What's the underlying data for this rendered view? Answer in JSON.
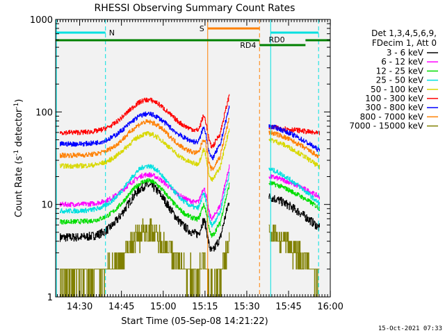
{
  "chart_data": {
    "type": "line",
    "title": "RHESSI Observing Summary Count Rates",
    "xlabel": "Start Time (05-Sep-08 14:21:22)",
    "ylabel_main": "Count Rate (s",
    "ylabel_sup1": "-1",
    "ylabel_mid": " detector",
    "ylabel_sup2": "-1",
    "ylabel_end": ")",
    "y_scale": "log",
    "ylim": [
      1,
      1000
    ],
    "x_ticks": [
      "14:30",
      "14:45",
      "15:00",
      "15:15",
      "15:30",
      "15:45",
      "16:00"
    ],
    "y_ticks": [
      "1",
      "10",
      "100",
      "1000"
    ],
    "timestamp": "15-Oct-2021 07:33",
    "legend_header": [
      "Det 1,3,4,5,6,9,",
      "FDecim 1, Att 0"
    ],
    "legend_position": "top-right",
    "series": [
      {
        "name": "3 - 6 keV",
        "color": "#000000",
        "base": 4.4,
        "peak": 16,
        "post_lvl": 12,
        "post_end": 5.5
      },
      {
        "name": "6 - 12 keV",
        "color": "#ff00ff",
        "base": 10,
        "peak": 21,
        "post_lvl": 20,
        "post_end": 12
      },
      {
        "name": "12 - 25 keV",
        "color": "#00dd00",
        "base": 6.5,
        "peak": 18,
        "post_lvl": 17,
        "post_end": 9
      },
      {
        "name": "25 - 50 keV",
        "color": "#00e0e0",
        "base": 8.5,
        "peak": 26,
        "post_lvl": 24,
        "post_end": 10
      },
      {
        "name": "50 - 100 keV",
        "color": "#d8d800",
        "base": 26,
        "peak": 58,
        "post_lvl": 50,
        "post_end": 25
      },
      {
        "name": "100 - 300 keV",
        "color": "#ff0000",
        "base": 60,
        "peak": 135,
        "post_lvl": 68,
        "post_end": 58
      },
      {
        "name": "300 - 800 keV",
        "color": "#0000ff",
        "base": 45,
        "peak": 95,
        "post_lvl": 70,
        "post_end": 38
      },
      {
        "name": "800 - 7000 keV",
        "color": "#ff8000",
        "base": 34,
        "peak": 78,
        "post_lvl": 60,
        "post_end": 32
      },
      {
        "name": "7000 - 15000 keV",
        "color": "#808000",
        "base": 1.6,
        "peak": 5.2,
        "post_lvl": 5,
        "post_end": 1.6
      }
    ],
    "annotations": {
      "night": {
        "label": "N",
        "color": "#00e0e0"
      },
      "saa": {
        "label": "S",
        "color": "#ff8000"
      },
      "decimation": [
        {
          "label": "RD4",
          "color": "#008000"
        },
        {
          "label": "RD0",
          "color": "#008000"
        }
      ]
    }
  }
}
